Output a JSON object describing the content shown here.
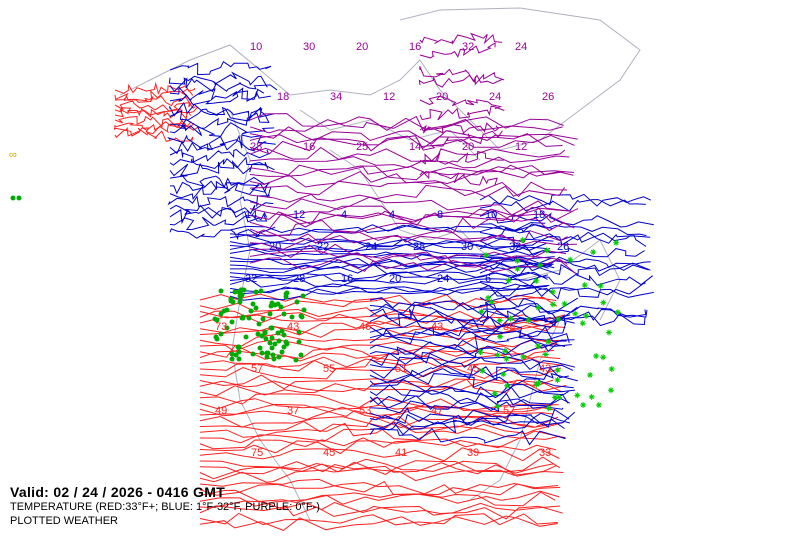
{
  "valid_line": "Valid: 02 / 24 / 2026  -  0416 GMT",
  "legend_line": "TEMPERATURE (RED:33°F+; BLUE: 1°F-32°F, PURPLE: 0°F-)",
  "layer_line": "PLOTTED WEATHER",
  "colors": {
    "warm": "#ff2020",
    "cool": "#0000cc",
    "cold": "#990099",
    "coast": "#b0b0c0",
    "weather_rain": "#00aa00",
    "weather_snow": "#00cc00",
    "haze": "#ccaa00"
  },
  "contour_labels": {
    "warm": [
      "73",
      "43",
      "46",
      "43",
      "39",
      "57",
      "55",
      "51",
      "45",
      "43",
      "49",
      "37",
      "53",
      "47",
      "57",
      "75",
      "45",
      "41",
      "39",
      "33"
    ],
    "cool": [
      "14",
      "12",
      "4",
      "4",
      "8",
      "10",
      "18",
      "20",
      "22",
      "24",
      "28",
      "30",
      "32",
      "26",
      "32",
      "28",
      "16",
      "20",
      "24",
      "6"
    ],
    "cold": [
      "10",
      "30",
      "20",
      "16",
      "32",
      "24",
      "18",
      "34",
      "12",
      "20",
      "24",
      "26",
      "28",
      "16",
      "25",
      "14",
      "20",
      "12"
    ]
  }
}
